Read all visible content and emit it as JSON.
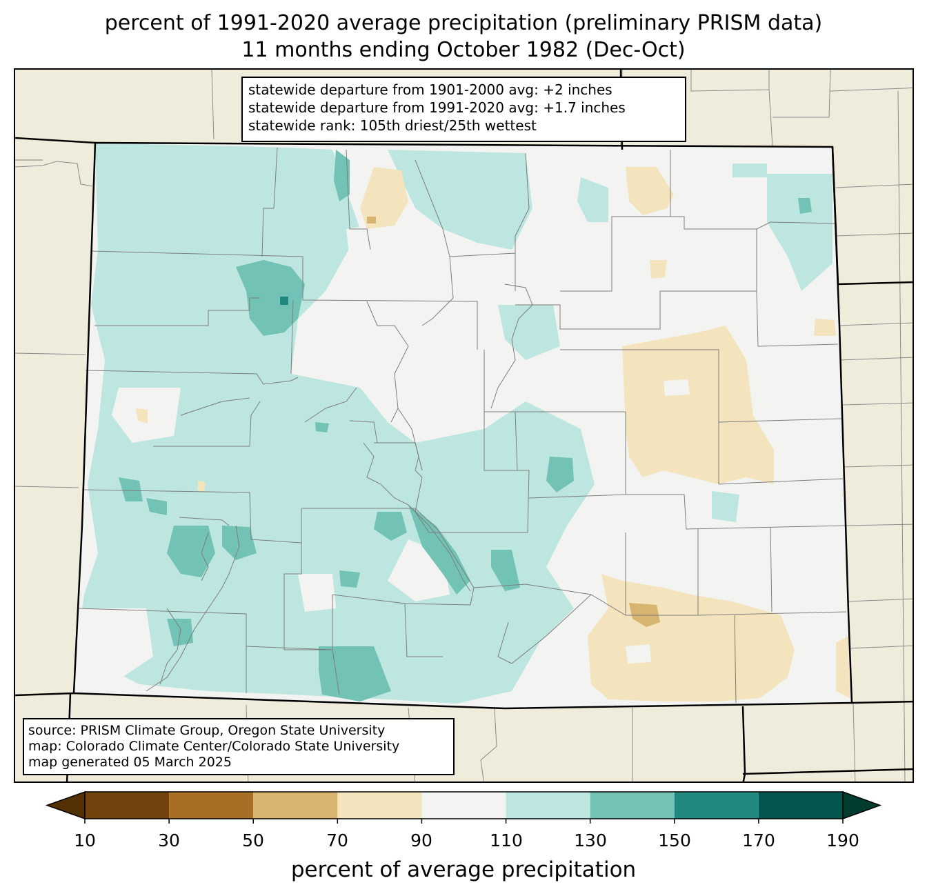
{
  "title": {
    "line1": "percent of 1991-2020 average precipitation (preliminary PRISM data)",
    "line2": "11 months ending October 1982 (Dec-Oct)"
  },
  "stats": {
    "line1": "statewide departure from 1901-2000 avg: +2 inches",
    "line2": "statewide departure from 1991-2020 avg: +1.7 inches",
    "line3": "statewide rank: 105th driest/25th wettest"
  },
  "source": {
    "line1": "source: PRISM Climate Group, Oregon State University",
    "line2": "map: Colorado Climate Center/Colorado State University",
    "line3": "map generated 05 March 2025"
  },
  "colorbar": {
    "label": "percent of average precipitation",
    "ticks": [
      "10",
      "30",
      "50",
      "70",
      "90",
      "110",
      "130",
      "150",
      "170",
      "190"
    ],
    "under_color": "#543005",
    "over_color": "#003c30",
    "colors": [
      "#72430c",
      "#a96e26",
      "#d7b46f",
      "#f3e4bd",
      "#f3f4f2",
      "#bde6e0",
      "#72c2b5",
      "#228981",
      "#02564d"
    ]
  },
  "map_colors": {
    "background": "#efecdc",
    "near_normal": "#f3f4f2",
    "wet_110_130": "#bde6e0",
    "wet_130_150": "#72c2b5",
    "wet_150_170": "#228981",
    "dry_70_90": "#f3e4bd",
    "dry_50_70": "#d7b46f"
  }
}
